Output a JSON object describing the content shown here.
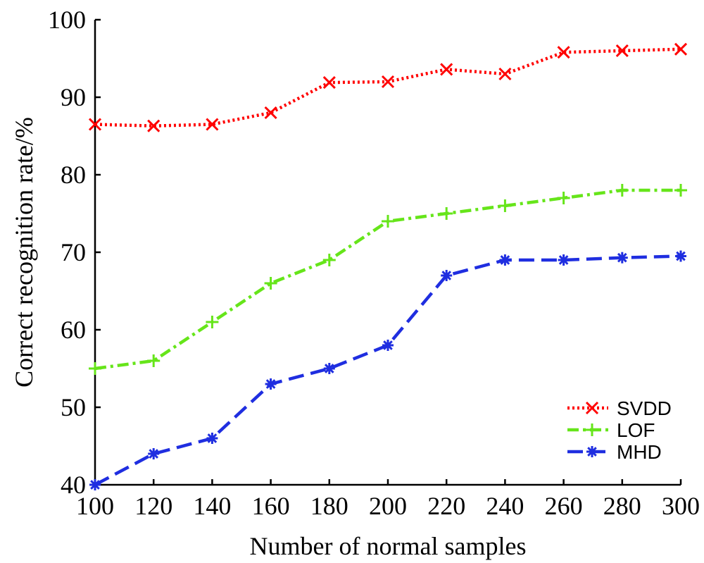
{
  "chart_data": {
    "type": "line",
    "title": "",
    "xlabel": "Number of normal samples",
    "ylabel": "Correct recognition rate/%",
    "x": [
      100,
      120,
      140,
      160,
      180,
      200,
      220,
      240,
      260,
      280,
      300
    ],
    "xlim": [
      100,
      300
    ],
    "ylim": [
      40,
      100
    ],
    "xticks": [
      100,
      120,
      140,
      160,
      180,
      200,
      220,
      240,
      260,
      280,
      300
    ],
    "yticks": [
      40,
      50,
      60,
      70,
      80,
      90,
      100
    ],
    "grid": false,
    "legend_position": "bottom-right",
    "series": [
      {
        "name": "SVDD",
        "values": [
          86.5,
          86.3,
          86.5,
          88.0,
          91.9,
          92.0,
          93.6,
          93.0,
          95.8,
          96.0,
          96.2
        ],
        "color": "#ff0000",
        "line_style": "dotted",
        "marker": "x"
      },
      {
        "name": "LOF",
        "values": [
          55.0,
          56.0,
          61.0,
          66.0,
          69.0,
          74.0,
          75.0,
          76.0,
          77.0,
          78.0,
          78.0
        ],
        "color": "#66e51a",
        "line_style": "dash-dot",
        "marker": "plus"
      },
      {
        "name": "MHD",
        "values": [
          40.0,
          44.0,
          46.0,
          53.0,
          55.0,
          58.0,
          67.0,
          69.0,
          69.0,
          69.3,
          69.5
        ],
        "color": "#1f2ee0",
        "line_style": "dashed",
        "marker": "asterisk"
      }
    ]
  }
}
